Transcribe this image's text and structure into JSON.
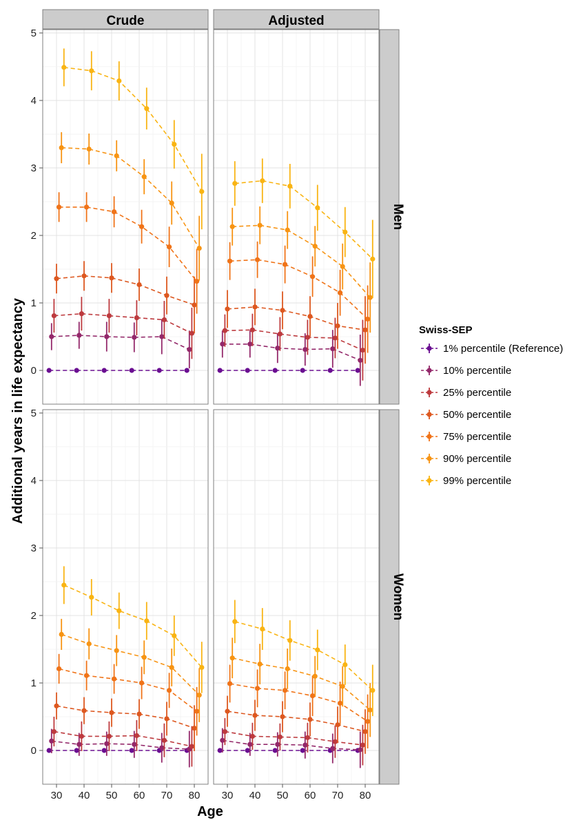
{
  "chart_data": {
    "type": "line",
    "xlabel": "Age",
    "ylabel": "Additional years in life expectancy",
    "xlim": [
      25,
      85
    ],
    "ylim": [
      -0.5,
      5.05
    ],
    "x_ticks": [
      "30",
      "40",
      "50",
      "60",
      "70",
      "80"
    ],
    "y_ticks": [
      "0",
      "1",
      "2",
      "3",
      "4",
      "5"
    ],
    "col_facets": [
      "Crude",
      "Adjusted"
    ],
    "row_facets": [
      "Men",
      "Women"
    ],
    "grid": true,
    "legend_position": "right",
    "legend_title": "Swiss-SEP",
    "series": [
      {
        "name": "1% percentile (Reference)",
        "color": "#6a0d91",
        "dodge": -2.7
      },
      {
        "name": "10% percentile",
        "color": "#93286a",
        "dodge": -1.8
      },
      {
        "name": "25% percentile",
        "color": "#bd3a3e",
        "dodge": -0.9
      },
      {
        "name": "50% percentile",
        "color": "#dd5820",
        "dodge": 0.0
      },
      {
        "name": "75% percentile",
        "color": "#f07318",
        "dodge": 0.9
      },
      {
        "name": "90% percentile",
        "color": "#f79414",
        "dodge": 1.8
      },
      {
        "name": "99% percentile",
        "color": "#f9b413",
        "dodge": 2.7
      }
    ],
    "ages": [
      30,
      40,
      50,
      60,
      70,
      80
    ],
    "panels": [
      {
        "col": "Crude",
        "row": "Men",
        "y": [
          [
            0,
            0,
            0,
            0,
            0,
            0
          ],
          [
            0.5,
            0.52,
            0.5,
            0.49,
            0.5,
            0.31
          ],
          [
            0.81,
            0.84,
            0.81,
            0.78,
            0.75,
            0.55
          ],
          [
            1.36,
            1.4,
            1.37,
            1.27,
            1.11,
            0.97
          ],
          [
            2.42,
            2.42,
            2.35,
            2.13,
            1.83,
            1.32
          ],
          [
            3.3,
            3.28,
            3.18,
            2.87,
            2.48,
            1.81
          ],
          [
            4.49,
            4.44,
            4.29,
            3.88,
            3.35,
            2.65
          ]
        ],
        "ci": [
          [
            0,
            0,
            0,
            0,
            0,
            0
          ],
          [
            0.2,
            0.2,
            0.22,
            0.22,
            0.26,
            0.28
          ],
          [
            0.25,
            0.25,
            0.25,
            0.26,
            0.28,
            0.38
          ],
          [
            0.22,
            0.22,
            0.22,
            0.24,
            0.28,
            0.42
          ],
          [
            0.22,
            0.22,
            0.23,
            0.25,
            0.3,
            0.48
          ],
          [
            0.23,
            0.23,
            0.23,
            0.26,
            0.32,
            0.48
          ],
          [
            0.28,
            0.29,
            0.29,
            0.31,
            0.36,
            0.56
          ]
        ]
      },
      {
        "col": "Adjusted",
        "row": "Men",
        "y": [
          [
            0,
            0,
            0,
            0,
            0,
            0
          ],
          [
            0.39,
            0.39,
            0.33,
            0.31,
            0.32,
            0.15
          ],
          [
            0.59,
            0.6,
            0.54,
            0.49,
            0.48,
            0.3
          ],
          [
            0.91,
            0.94,
            0.89,
            0.8,
            0.66,
            0.6
          ],
          [
            1.62,
            1.64,
            1.57,
            1.39,
            1.15,
            0.76
          ],
          [
            2.13,
            2.15,
            2.08,
            1.84,
            1.54,
            1.08
          ],
          [
            2.77,
            2.81,
            2.73,
            2.41,
            2.05,
            1.65
          ]
        ],
        "ci": [
          [
            0,
            0,
            0,
            0,
            0,
            0
          ],
          [
            0.2,
            0.2,
            0.22,
            0.24,
            0.28,
            0.38
          ],
          [
            0.24,
            0.24,
            0.25,
            0.26,
            0.3,
            0.45
          ],
          [
            0.28,
            0.27,
            0.28,
            0.3,
            0.34,
            0.5
          ],
          [
            0.28,
            0.27,
            0.28,
            0.3,
            0.34,
            0.5
          ],
          [
            0.28,
            0.28,
            0.28,
            0.3,
            0.34,
            0.52
          ],
          [
            0.33,
            0.33,
            0.33,
            0.34,
            0.37,
            0.58
          ]
        ]
      },
      {
        "col": "Crude",
        "row": "Women",
        "y": [
          [
            0,
            0,
            0,
            0,
            0,
            0
          ],
          [
            0.14,
            0.09,
            0.1,
            0.09,
            0.04,
            0.02
          ],
          [
            0.28,
            0.21,
            0.21,
            0.22,
            0.15,
            0.06
          ],
          [
            0.66,
            0.59,
            0.56,
            0.54,
            0.47,
            0.33
          ],
          [
            1.21,
            1.11,
            1.06,
            1.0,
            0.89,
            0.58
          ],
          [
            1.72,
            1.58,
            1.48,
            1.38,
            1.23,
            0.82
          ],
          [
            2.45,
            2.27,
            2.07,
            1.92,
            1.7,
            1.23
          ]
        ],
        "ci": [
          [
            0,
            0,
            0,
            0,
            0,
            0
          ],
          [
            0.18,
            0.17,
            0.18,
            0.2,
            0.22,
            0.27
          ],
          [
            0.22,
            0.22,
            0.22,
            0.23,
            0.25,
            0.3
          ],
          [
            0.2,
            0.2,
            0.21,
            0.22,
            0.25,
            0.34
          ],
          [
            0.22,
            0.22,
            0.22,
            0.24,
            0.26,
            0.36
          ],
          [
            0.23,
            0.23,
            0.23,
            0.25,
            0.28,
            0.4
          ],
          [
            0.28,
            0.27,
            0.27,
            0.28,
            0.3,
            0.38
          ]
        ]
      },
      {
        "col": "Adjusted",
        "row": "Women",
        "y": [
          [
            0,
            0,
            0,
            0,
            0,
            0
          ],
          [
            0.15,
            0.09,
            0.09,
            0.08,
            0.03,
            0.01
          ],
          [
            0.28,
            0.21,
            0.2,
            0.19,
            0.13,
            0.08
          ],
          [
            0.58,
            0.52,
            0.5,
            0.46,
            0.38,
            0.28
          ],
          [
            0.99,
            0.92,
            0.89,
            0.81,
            0.7,
            0.43
          ],
          [
            1.37,
            1.28,
            1.21,
            1.1,
            0.95,
            0.6
          ],
          [
            1.91,
            1.8,
            1.63,
            1.49,
            1.27,
            0.89
          ]
        ],
        "ci": [
          [
            0,
            0,
            0,
            0,
            0,
            0
          ],
          [
            0.18,
            0.17,
            0.18,
            0.2,
            0.22,
            0.27
          ],
          [
            0.2,
            0.2,
            0.2,
            0.22,
            0.24,
            0.3
          ],
          [
            0.23,
            0.23,
            0.23,
            0.25,
            0.27,
            0.33
          ],
          [
            0.28,
            0.28,
            0.28,
            0.3,
            0.32,
            0.4
          ],
          [
            0.3,
            0.3,
            0.3,
            0.3,
            0.3,
            0.4
          ],
          [
            0.32,
            0.31,
            0.3,
            0.3,
            0.3,
            0.38
          ]
        ]
      }
    ]
  }
}
